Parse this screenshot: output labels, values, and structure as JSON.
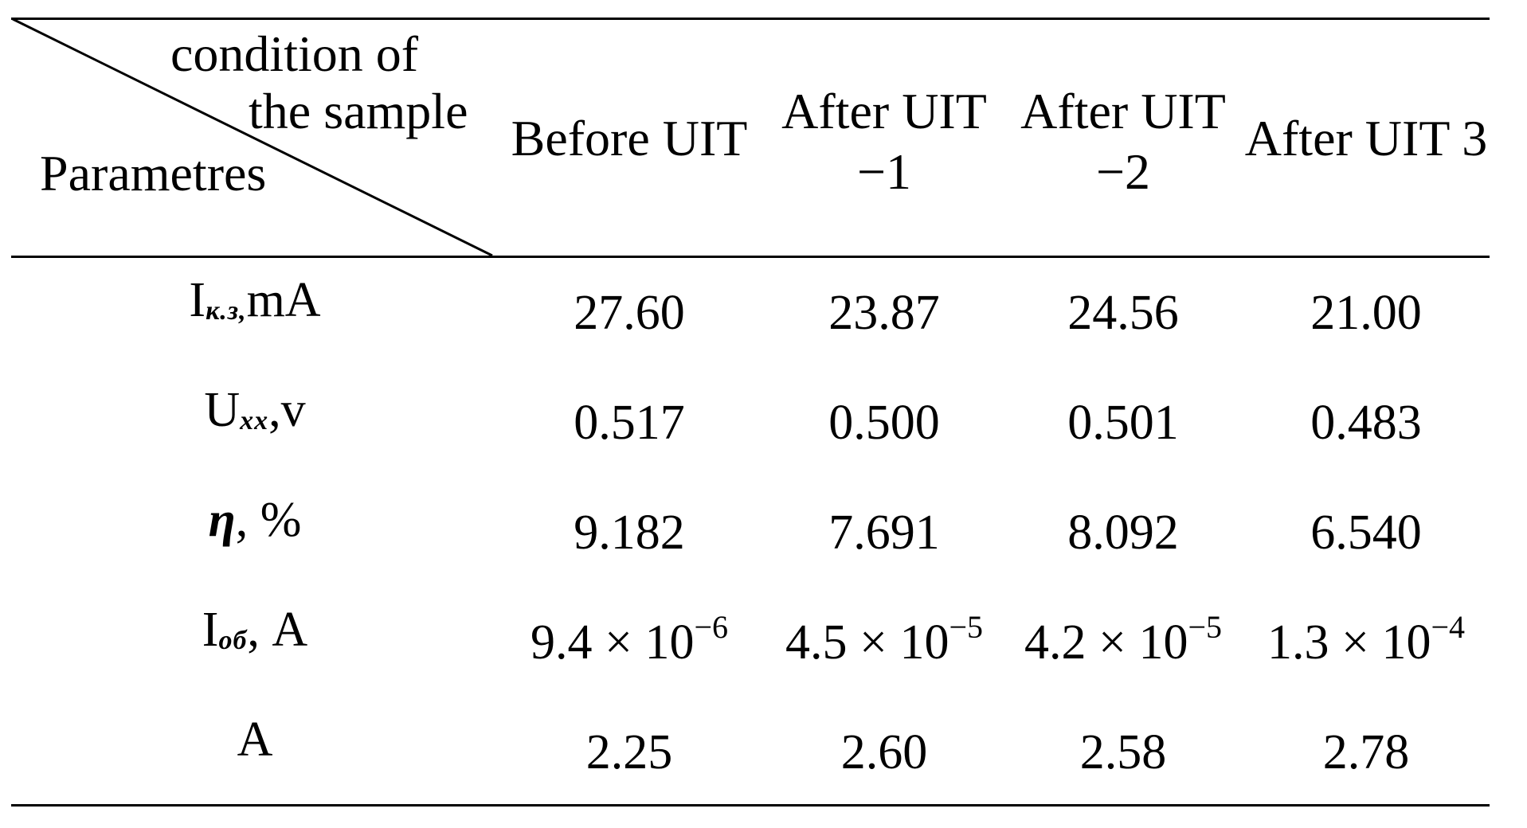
{
  "table": {
    "corner": {
      "top_line1": "condition of",
      "top_line2": "the sample",
      "bottom": "Parametres"
    },
    "columns": [
      {
        "line1": "Before UIT",
        "line2": ""
      },
      {
        "line1": "After UIT",
        "line2": "−1"
      },
      {
        "line1": "After UIT",
        "line2": "−2"
      },
      {
        "line1": "After UIT 3",
        "line2": ""
      }
    ],
    "rows": [
      {
        "label": {
          "main": "I",
          "sub": "к.з,",
          "unit": "mA"
        },
        "values": [
          "27.60",
          "23.87",
          "24.56",
          "21.00"
        ]
      },
      {
        "label": {
          "main": "U",
          "sub": "xx",
          "unit": ",v"
        },
        "values": [
          "0.517",
          "0.500",
          "0.501",
          "0.483"
        ]
      },
      {
        "label": {
          "main": "η",
          "sub": "",
          "unit": ", %"
        },
        "values": [
          "9.182",
          "7.691",
          "8.092",
          "6.540"
        ]
      },
      {
        "label": {
          "main": "I",
          "sub": "об",
          "unit": ", A"
        },
        "values": [
          {
            "mantissa": "9.4 × 10",
            "exp": "−6"
          },
          {
            "mantissa": "4.5 × 10",
            "exp": "−5"
          },
          {
            "mantissa": "4.2 × 10",
            "exp": "−5"
          },
          {
            "mantissa": "1.3 × 10",
            "exp": "−4"
          }
        ]
      },
      {
        "label": {
          "main": "A",
          "sub": "",
          "unit": ""
        },
        "values": [
          "2.25",
          "2.60",
          "2.58",
          "2.78"
        ]
      }
    ]
  }
}
